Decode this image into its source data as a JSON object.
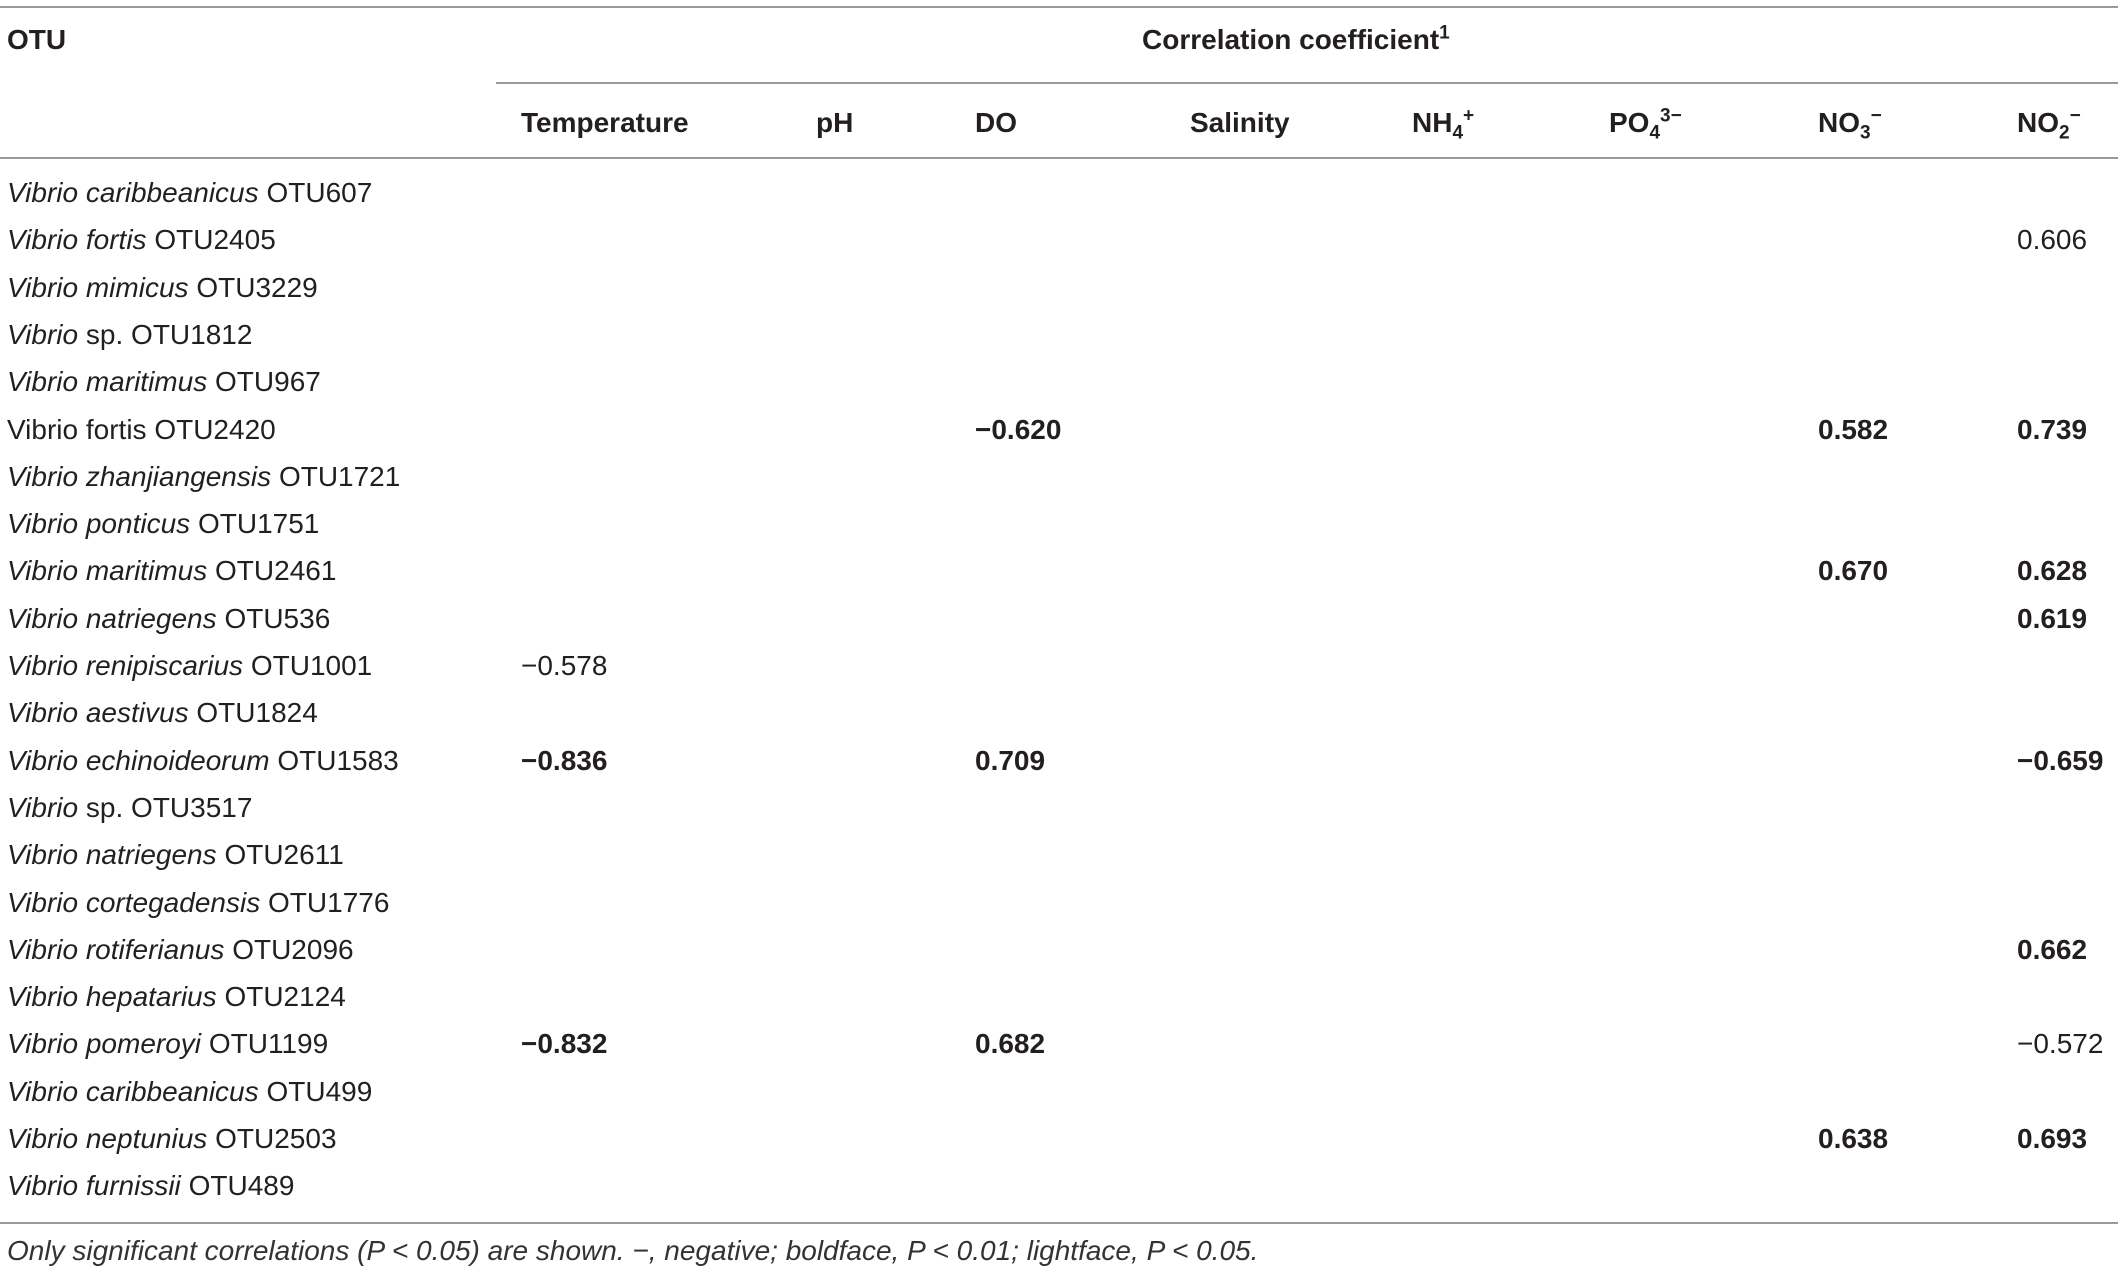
{
  "table": {
    "header": {
      "otu": "OTU",
      "group": [
        {
          "text": "Correlation coefficient"
        },
        {
          "text": "1",
          "sup": true
        }
      ]
    },
    "columns": [
      [
        {
          "text": "Temperature"
        }
      ],
      [
        {
          "text": "pH"
        }
      ],
      [
        {
          "text": "DO"
        }
      ],
      [
        {
          "text": "Salinity"
        }
      ],
      [
        {
          "text": "NH"
        },
        {
          "text": "4",
          "sub": true
        },
        {
          "text": "+",
          "sup": true
        }
      ],
      [
        {
          "text": "PO"
        },
        {
          "text": "4",
          "sub": true
        },
        {
          "text": "3−",
          "sup": true
        }
      ],
      [
        {
          "text": "NO"
        },
        {
          "text": "3",
          "sub": true
        },
        {
          "text": "−",
          "sup": true
        }
      ],
      [
        {
          "text": "NO"
        },
        {
          "text": "2",
          "sub": true
        },
        {
          "text": "−",
          "sup": true
        }
      ]
    ],
    "rows": [
      {
        "name": {
          "italic": "Vibrio caribbeanicus",
          "plain": "OTU607"
        },
        "cells": [
          null,
          null,
          null,
          null,
          null,
          null,
          null,
          null
        ]
      },
      {
        "name": {
          "italic": "Vibrio fortis",
          "plain": "OTU2405"
        },
        "cells": [
          null,
          null,
          null,
          null,
          null,
          null,
          null,
          {
            "text": "0.606",
            "bold": false
          }
        ]
      },
      {
        "name": {
          "italic": "Vibrio mimicus",
          "plain": "OTU3229"
        },
        "cells": [
          null,
          null,
          null,
          null,
          null,
          null,
          null,
          null
        ]
      },
      {
        "name": {
          "italic": "Vibrio",
          "plain": "sp. OTU1812"
        },
        "cells": [
          null,
          null,
          null,
          null,
          null,
          null,
          null,
          null
        ]
      },
      {
        "name": {
          "italic": "Vibrio maritimus",
          "plain": "OTU967"
        },
        "cells": [
          null,
          null,
          null,
          null,
          null,
          null,
          null,
          null
        ]
      },
      {
        "name": {
          "plain": "Vibrio fortis OTU2420"
        },
        "cells": [
          null,
          null,
          {
            "text": "−0.620",
            "bold": true
          },
          null,
          null,
          null,
          {
            "text": "0.582",
            "bold": true
          },
          {
            "text": "0.739",
            "bold": true
          }
        ]
      },
      {
        "name": {
          "italic": "Vibrio zhanjiangensis",
          "plain": "OTU1721"
        },
        "cells": [
          null,
          null,
          null,
          null,
          null,
          null,
          null,
          null
        ]
      },
      {
        "name": {
          "italic": "Vibrio ponticus",
          "plain": "OTU1751"
        },
        "cells": [
          null,
          null,
          null,
          null,
          null,
          null,
          null,
          null
        ]
      },
      {
        "name": {
          "italic": "Vibrio maritimus",
          "plain": "OTU2461"
        },
        "cells": [
          null,
          null,
          null,
          null,
          null,
          null,
          {
            "text": "0.670",
            "bold": true
          },
          {
            "text": "0.628",
            "bold": true
          }
        ]
      },
      {
        "name": {
          "italic": "Vibrio natriegens",
          "plain": "OTU536"
        },
        "cells": [
          null,
          null,
          null,
          null,
          null,
          null,
          null,
          {
            "text": "0.619",
            "bold": true
          }
        ]
      },
      {
        "name": {
          "italic": "Vibrio renipiscarius",
          "plain": "OTU1001"
        },
        "cells": [
          {
            "text": "−0.578",
            "bold": false
          },
          null,
          null,
          null,
          null,
          null,
          null,
          null
        ]
      },
      {
        "name": {
          "italic": "Vibrio aestivus",
          "plain": "OTU1824"
        },
        "cells": [
          null,
          null,
          null,
          null,
          null,
          null,
          null,
          null
        ]
      },
      {
        "name": {
          "italic": "Vibrio echinoideorum",
          "plain": "OTU1583"
        },
        "cells": [
          {
            "text": "−0.836",
            "bold": true
          },
          null,
          {
            "text": "0.709",
            "bold": true
          },
          null,
          null,
          null,
          null,
          {
            "text": "−0.659",
            "bold": true
          }
        ]
      },
      {
        "name": {
          "italic": "Vibrio",
          "plain": "sp. OTU3517"
        },
        "cells": [
          null,
          null,
          null,
          null,
          null,
          null,
          null,
          null
        ]
      },
      {
        "name": {
          "italic": "Vibrio natriegens",
          "plain": "OTU2611"
        },
        "cells": [
          null,
          null,
          null,
          null,
          null,
          null,
          null,
          null
        ]
      },
      {
        "name": {
          "italic": "Vibrio cortegadensis",
          "plain": "OTU1776"
        },
        "cells": [
          null,
          null,
          null,
          null,
          null,
          null,
          null,
          null
        ]
      },
      {
        "name": {
          "italic": "Vibrio rotiferianus",
          "plain": "OTU2096"
        },
        "cells": [
          null,
          null,
          null,
          null,
          null,
          null,
          null,
          {
            "text": "0.662",
            "bold": true
          }
        ]
      },
      {
        "name": {
          "italic": "Vibrio hepatarius",
          "plain": "OTU2124"
        },
        "cells": [
          null,
          null,
          null,
          null,
          null,
          null,
          null,
          null
        ]
      },
      {
        "name": {
          "italic": "Vibrio pomeroyi",
          "plain": "OTU1199"
        },
        "cells": [
          {
            "text": "−0.832",
            "bold": true
          },
          null,
          {
            "text": "0.682",
            "bold": true
          },
          null,
          null,
          null,
          null,
          {
            "text": "−0.572",
            "bold": false
          }
        ]
      },
      {
        "name": {
          "italic": "Vibrio caribbeanicus",
          "plain": "OTU499"
        },
        "cells": [
          null,
          null,
          null,
          null,
          null,
          null,
          null,
          null
        ]
      },
      {
        "name": {
          "italic": "Vibrio neptunius",
          "plain": "OTU2503"
        },
        "cells": [
          null,
          null,
          null,
          null,
          null,
          null,
          {
            "text": "0.638",
            "bold": true
          },
          {
            "text": "0.693",
            "bold": true
          }
        ]
      },
      {
        "name": {
          "italic": "Vibrio furnissii",
          "plain": "OTU489"
        },
        "cells": [
          null,
          null,
          null,
          null,
          null,
          null,
          null,
          null
        ]
      }
    ],
    "footnote": "Only significant correlations (P < 0.05) are shown. −, negative; boldface, P < 0.01; lightface, P < 0.05."
  }
}
